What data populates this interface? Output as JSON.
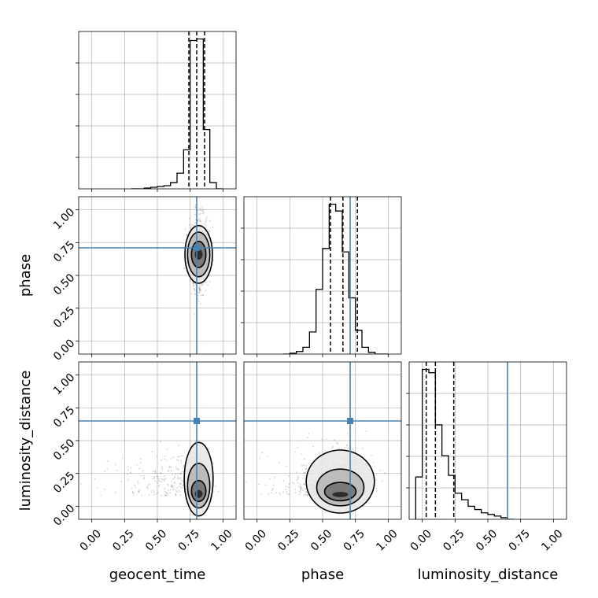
{
  "chart_data": {
    "type": "corner",
    "parameters": [
      "geocent_time",
      "phase",
      "luminosity_distance"
    ],
    "axis_range": [
      -0.1,
      1.1
    ],
    "ticks": [
      0,
      0.25,
      0.5,
      0.75,
      1
    ],
    "tick_labels": [
      "0.00",
      "0.25",
      "0.50",
      "0.75",
      "1.00"
    ],
    "xlabels": [
      "geocent_time",
      "phase",
      "luminosity_distance"
    ],
    "ylabels": [
      "",
      "phase",
      "luminosity_distance"
    ],
    "truths": [
      0.8,
      0.71,
      0.65
    ],
    "grid": true,
    "histograms": [
      {
        "parameter": "geocent_time",
        "bin_edges": [
          0.3,
          0.35,
          0.4,
          0.45,
          0.5,
          0.55,
          0.6,
          0.65,
          0.7,
          0.75,
          0.8,
          0.85,
          0.9,
          0.95,
          1.0
        ],
        "counts": [
          0,
          0,
          0.5,
          1,
          1.5,
          2,
          4,
          10,
          25,
          95,
          96,
          38,
          4,
          0
        ],
        "quantiles": [
          0.74,
          0.8,
          0.86
        ]
      },
      {
        "parameter": "phase",
        "bin_edges": [
          0.2,
          0.25,
          0.3,
          0.35,
          0.4,
          0.45,
          0.5,
          0.55,
          0.6,
          0.65,
          0.7,
          0.75,
          0.8,
          0.85,
          0.9,
          0.95,
          1.0
        ],
        "counts": [
          0,
          0.5,
          1.5,
          4,
          13,
          38,
          62,
          88,
          84,
          60,
          33,
          14,
          4,
          1,
          0,
          0
        ],
        "quantiles": [
          0.56,
          0.655,
          0.765
        ]
      },
      {
        "parameter": "luminosity_distance",
        "bin_edges": [
          -0.05,
          0.0,
          0.05,
          0.1,
          0.15,
          0.2,
          0.25,
          0.3,
          0.35,
          0.4,
          0.45,
          0.5,
          0.55,
          0.6,
          0.65,
          0.7
        ],
        "counts": [
          26,
          92,
          90,
          58,
          39,
          27,
          16,
          12,
          8,
          6,
          4,
          3,
          2,
          1,
          0
        ],
        "quantiles": [
          0.03,
          0.1,
          0.24
        ]
      }
    ],
    "pairs": [
      {
        "x": "geocent_time",
        "y": "phase",
        "center": [
          0.815,
          0.66
        ],
        "spread": [
          0.035,
          0.13
        ],
        "contours": [
          [
            0.03,
            0.04
          ],
          [
            0.055,
            0.1
          ],
          [
            0.085,
            0.17
          ],
          [
            0.105,
            0.22
          ]
        ]
      },
      {
        "x": "geocent_time",
        "y": "luminosity_distance",
        "center": [
          0.815,
          0.08
        ],
        "spread": [
          0.04,
          0.12
        ],
        "contours": [
          [
            0.03,
            0.03
          ],
          [
            0.055,
            0.08
          ],
          [
            0.085,
            0.17
          ],
          [
            0.11,
            0.28
          ]
        ]
      },
      {
        "x": "phase",
        "y": "luminosity_distance",
        "center": [
          0.635,
          0.08
        ],
        "spread": [
          0.12,
          0.12
        ],
        "contours": [
          [
            0.06,
            0.02
          ],
          [
            0.12,
            0.07
          ],
          [
            0.18,
            0.14
          ],
          [
            0.26,
            0.24
          ]
        ]
      }
    ],
    "colors": {
      "truth": "#4682b4",
      "line": "#000000",
      "grid": "#b0b0b0"
    }
  }
}
